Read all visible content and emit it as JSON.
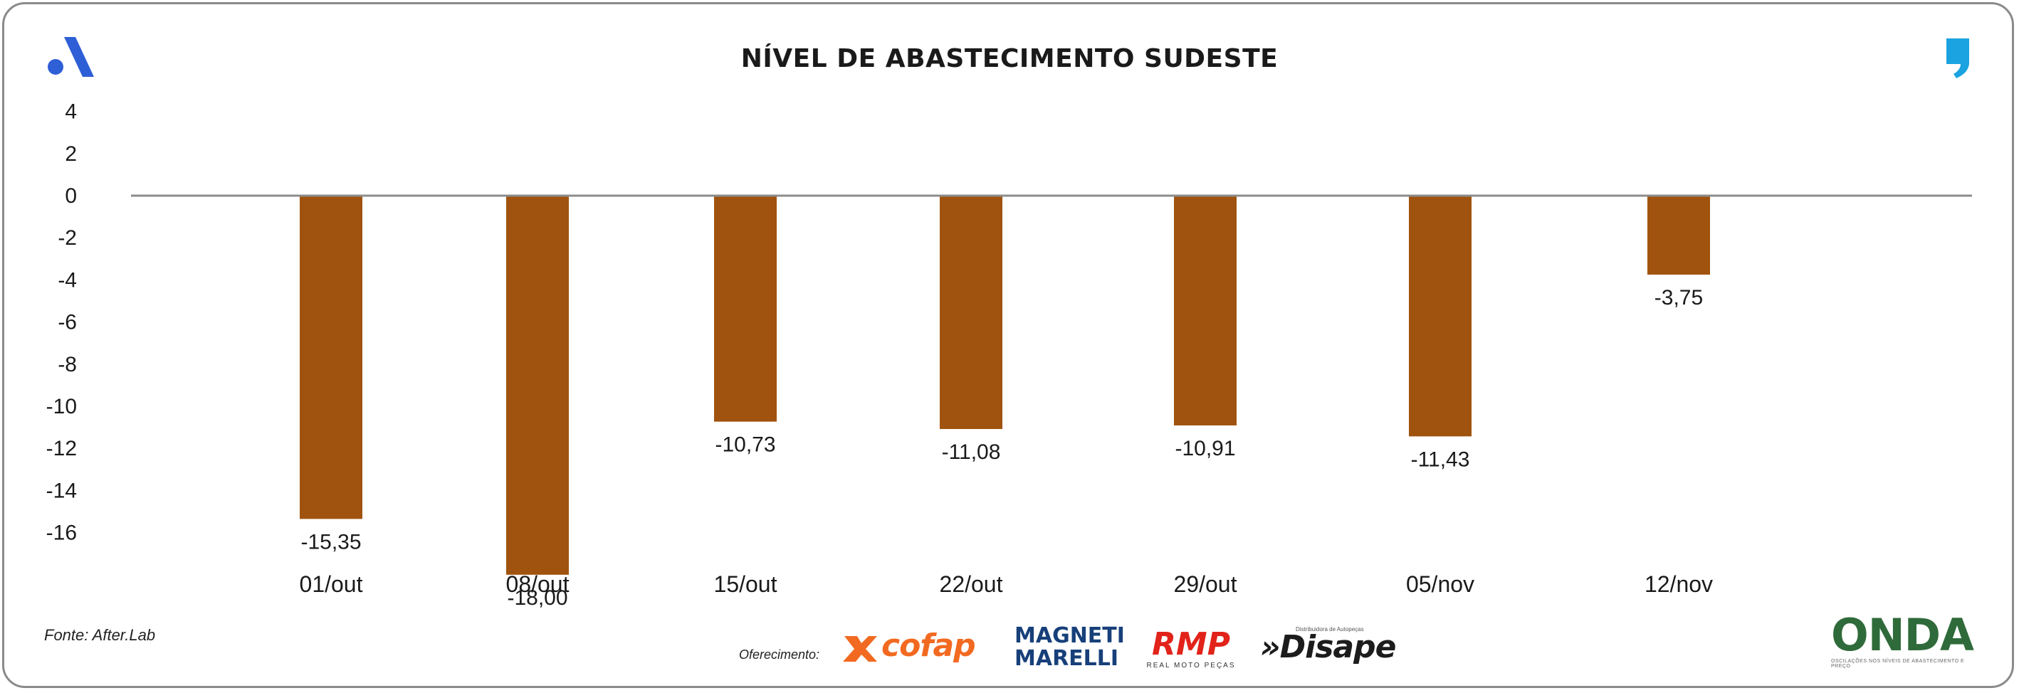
{
  "header": {
    "title": "NÍVEL DE ABASTECIMENTO SUDESTE"
  },
  "icons": {
    "brand_left": "brand-a-icon",
    "brand_right": "quote-icon"
  },
  "colors": {
    "bar": "#A0530E",
    "axis": "#8c8c8c",
    "brand_blue": "#2f5fd6",
    "brand_cyan": "#1aa3e0"
  },
  "footer": {
    "source": "Fonte: After.Lab",
    "sponsor_label": "Oferecimento:",
    "sponsors": {
      "cofap": "cofap",
      "magneti_line1": "MAGNETI",
      "magneti_line2": "MARELLI",
      "rmp": "RMP",
      "rmp_sub": "REAL MOTO PEÇAS",
      "disape": "»Disape",
      "disape_sub": "Distribuidora de Autopeças",
      "onda": "ONDA",
      "onda_sub": "OSCILAÇÕES NOS NÍVEIS DE ABASTECIMENTO E PREÇO"
    }
  },
  "chart_data": {
    "type": "bar",
    "title": "NÍVEL DE ABASTECIMENTO SUDESTE",
    "xlabel": "",
    "ylabel": "",
    "categories": [
      "01/out",
      "08/out",
      "15/out",
      "22/out",
      "29/out",
      "05/nov",
      "12/nov"
    ],
    "values": [
      -15.35,
      -18.0,
      -10.73,
      -11.08,
      -10.91,
      -11.43,
      -3.75
    ],
    "data_labels": [
      "-15,35",
      "-18,00",
      "-10,73",
      "-11,08",
      "-10,91",
      "-11,43",
      "-3,75"
    ],
    "yticks": [
      4,
      2,
      0,
      -2,
      -4,
      -6,
      -8,
      -10,
      -12,
      -14,
      -16
    ],
    "ylim": [
      -16,
      4
    ],
    "grid": false,
    "legend": "none"
  }
}
